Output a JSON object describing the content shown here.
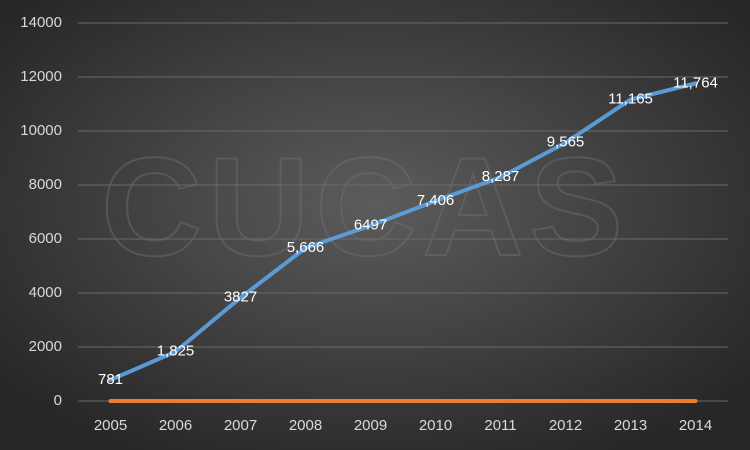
{
  "chart_data": {
    "type": "line",
    "watermark": "CUCAS",
    "categories": [
      "2005",
      "2006",
      "2007",
      "2008",
      "2009",
      "2010",
      "2011",
      "2012",
      "2013",
      "2014"
    ],
    "series": [
      {
        "color": "#5b9bd5",
        "values": [
          781,
          1825,
          3827,
          5666,
          6497,
          7406,
          8287,
          9565,
          11165,
          11764
        ],
        "value_labels": [
          "781",
          "1,825",
          "3827",
          "5,666",
          "6497",
          "7,406",
          "8,287",
          "9,565",
          "11,165",
          "11,764"
        ]
      },
      {
        "color": "#ed7d31",
        "values": [
          0,
          0,
          0,
          0,
          0,
          0,
          0,
          0,
          0,
          0
        ]
      }
    ],
    "ylim": [
      0,
      14000
    ],
    "yticks": [
      0,
      2000,
      4000,
      6000,
      8000,
      10000,
      12000,
      14000
    ],
    "grid": true
  }
}
